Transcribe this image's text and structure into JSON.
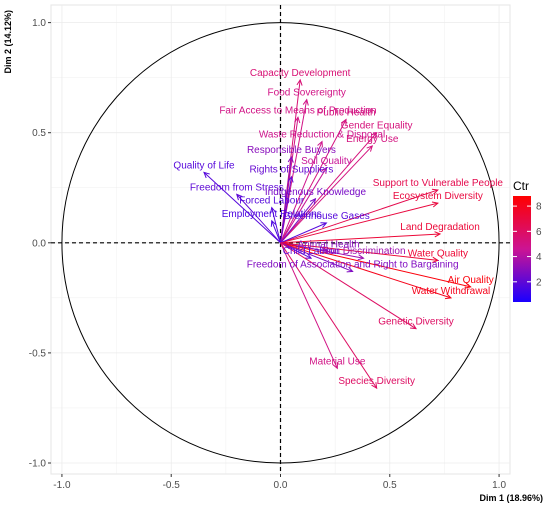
{
  "chart_data": {
    "type": "scatter",
    "subtype": "pca-variable-correlation-circle",
    "xlabel": "Dim 1 (18.96%)",
    "ylabel": "Dim 2 (14.12%)",
    "xlim": [
      -1.05,
      1.05
    ],
    "ylim": [
      -1.05,
      1.08
    ],
    "xticks": [
      "-1.0",
      "-0.5",
      "0.0",
      "0.5",
      "1.0"
    ],
    "yticks": [
      "1.0",
      "0.5",
      "0.0",
      "-0.5",
      "-1.0"
    ],
    "grid": true,
    "legend": {
      "title": "Ctr",
      "placement": "right",
      "ticks": [
        "2",
        "4",
        "6",
        "8"
      ],
      "range": [
        0.4,
        8.8
      ],
      "color_low": "#1a00ff",
      "color_mid": "#cc1493",
      "color_high": "#ff0000"
    },
    "variables": [
      {
        "label": "Capacity Development",
        "x": 0.09,
        "y": 0.74,
        "ctr": 5.5
      },
      {
        "label": "Food Sovereignty",
        "x": 0.12,
        "y": 0.65,
        "ctr": 5.0
      },
      {
        "label": "Fair Access to Means of Production",
        "x": 0.08,
        "y": 0.57,
        "ctr": 5.0
      },
      {
        "label": "Public Health",
        "x": 0.3,
        "y": 0.56,
        "ctr": 5.2
      },
      {
        "label": "Gender Equality",
        "x": 0.44,
        "y": 0.5,
        "ctr": 5.3
      },
      {
        "label": "Waste Reduction & Disposal",
        "x": 0.19,
        "y": 0.46,
        "ctr": 4.8
      },
      {
        "label": "Energy Use",
        "x": 0.42,
        "y": 0.44,
        "ctr": 5.2
      },
      {
        "label": "Responsible Buyers",
        "x": 0.05,
        "y": 0.39,
        "ctr": 3.0
      },
      {
        "label": "Soil Quality",
        "x": 0.21,
        "y": 0.34,
        "ctr": 4.5
      },
      {
        "label": "Quality of Life",
        "x": -0.35,
        "y": 0.32,
        "ctr": 1.8
      },
      {
        "label": "Rights of Suppliers",
        "x": 0.05,
        "y": 0.3,
        "ctr": 2.2
      },
      {
        "label": "Support to Vulnerable People",
        "x": 0.72,
        "y": 0.24,
        "ctr": 6.6
      },
      {
        "label": "Freedom from Stress",
        "x": -0.2,
        "y": 0.22,
        "ctr": 2.0
      },
      {
        "label": "Indigenous Knowledge",
        "x": 0.16,
        "y": 0.2,
        "ctr": 2.6
      },
      {
        "label": "Ecosystem Diversity",
        "x": 0.72,
        "y": 0.18,
        "ctr": 7.0
      },
      {
        "label": "Forced Labour",
        "x": -0.04,
        "y": 0.16,
        "ctr": 1.8
      },
      {
        "label": "Employment Relations",
        "x": -0.04,
        "y": 0.1,
        "ctr": 1.6
      },
      {
        "label": "Greenhouse Gases",
        "x": 0.21,
        "y": 0.09,
        "ctr": 1.8
      },
      {
        "label": "Land Degradation",
        "x": 0.73,
        "y": 0.04,
        "ctr": 7.2
      },
      {
        "label": "Animal Health",
        "x": 0.22,
        "y": -0.04,
        "ctr": 3.0
      },
      {
        "label": "Water Quality",
        "x": 0.72,
        "y": -0.08,
        "ctr": 7.3
      },
      {
        "label": "Child Labour",
        "x": 0.14,
        "y": -0.07,
        "ctr": 2.0
      },
      {
        "label": "Non Discrimination",
        "x": 0.38,
        "y": -0.07,
        "ctr": 3.5
      },
      {
        "label": "Air Quality",
        "x": 0.87,
        "y": -0.2,
        "ctr": 8.5
      },
      {
        "label": "Water Withdrawal",
        "x": 0.78,
        "y": -0.25,
        "ctr": 8.0
      },
      {
        "label": "Freedom of Association and Right to Bargaining",
        "x": 0.33,
        "y": -0.13,
        "ctr": 2.8
      },
      {
        "label": "Genetic Diversity",
        "x": 0.62,
        "y": -0.39,
        "ctr": 6.0
      },
      {
        "label": "Material Use",
        "x": 0.26,
        "y": -0.57,
        "ctr": 5.0
      },
      {
        "label": "Species Diversity",
        "x": 0.44,
        "y": -0.66,
        "ctr": 6.0
      }
    ]
  }
}
